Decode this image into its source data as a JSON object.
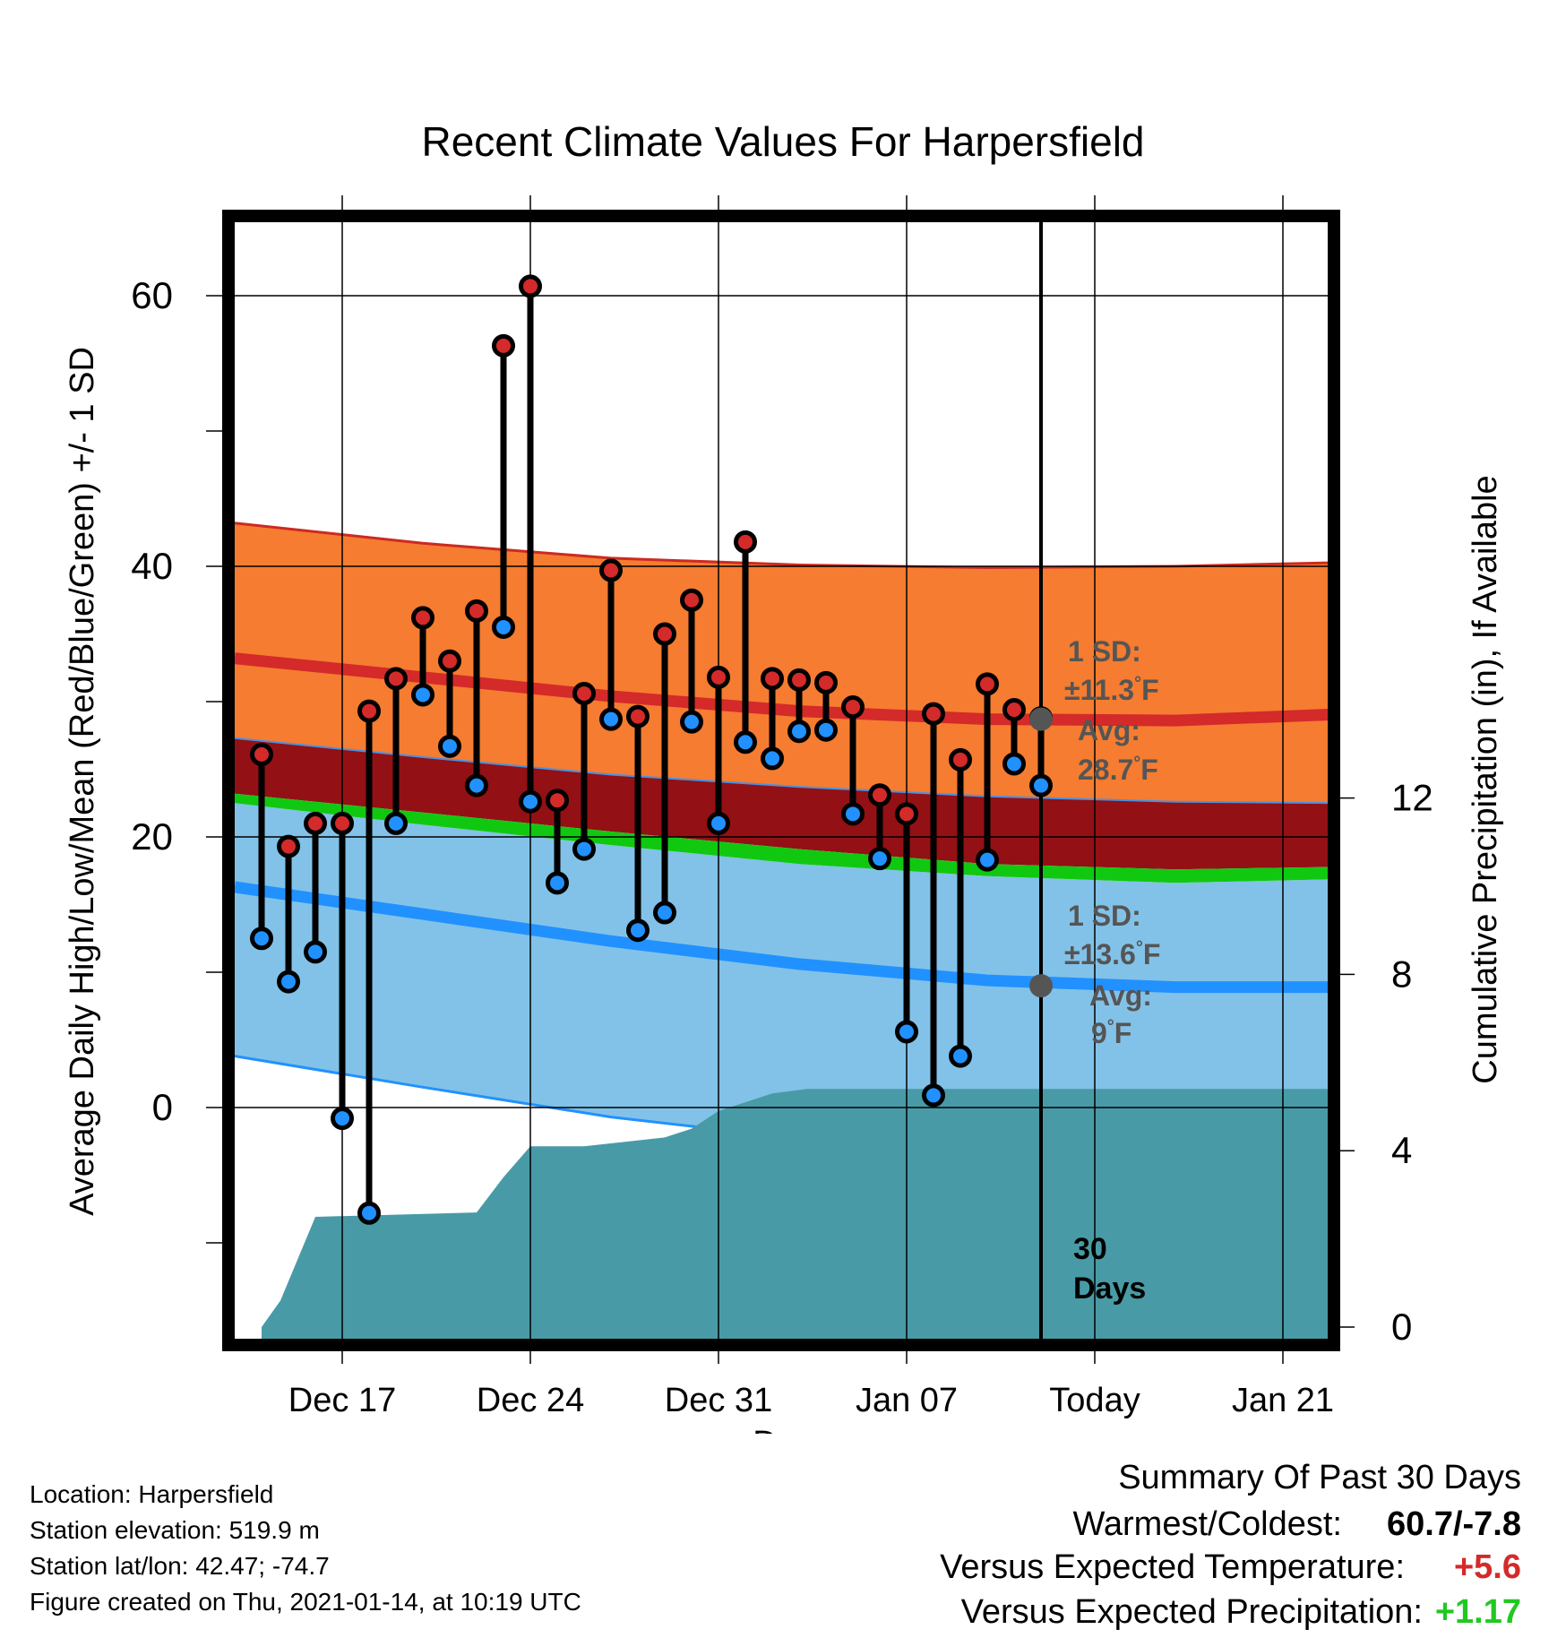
{
  "chart_data": {
    "type": "line",
    "title": "Recent Climate Values For Harpersfield",
    "xlabel": "Day",
    "ylabel": "Average Daily High/Low/Mean (Red/Blue/Green) +/- 1 SD",
    "y2label": "Cumulative Precipitation (in), If Available",
    "x_tick_labels": [
      "Dec 17",
      "Dec 24",
      "Dec 31",
      "Jan 07",
      "Today",
      "Jan 21"
    ],
    "y_ticks": [
      0,
      20,
      40,
      60
    ],
    "y2_ticks": [
      0,
      4,
      8,
      12
    ],
    "today_x": 30,
    "days_x": [
      1,
      2,
      3,
      4,
      5,
      6,
      7,
      8,
      9,
      10,
      11,
      12,
      13,
      14,
      15,
      16,
      17,
      18,
      19,
      20,
      21,
      22,
      23,
      24,
      25,
      26,
      27,
      28,
      29,
      30
    ],
    "daily_high": [
      26.1,
      19.3,
      21.0,
      21.0,
      29.3,
      31.7,
      36.2,
      33.0,
      36.7,
      56.3,
      60.7,
      22.7,
      30.6,
      39.7,
      28.9,
      35.0,
      37.5,
      31.8,
      41.8,
      31.7,
      31.6,
      31.4,
      29.6,
      23.1,
      21.7,
      29.1,
      25.7,
      31.3,
      29.4,
      28.8
    ],
    "daily_low": [
      12.5,
      9.3,
      11.5,
      -0.8,
      -7.8,
      21.0,
      30.5,
      26.7,
      23.8,
      35.5,
      22.6,
      16.6,
      19.1,
      28.7,
      13.1,
      14.4,
      28.5,
      21.0,
      27.0,
      25.8,
      27.8,
      27.9,
      21.7,
      18.4,
      5.6,
      0.9,
      3.8,
      18.3,
      25.4,
      23.8
    ],
    "normal_high_mean_upper_lower": {
      "x": [
        0,
        7,
        14,
        21,
        28,
        35,
        41.5
      ],
      "high_upper": [
        43.2,
        41.7,
        40.6,
        40.1,
        39.9,
        40.0,
        40.3
      ],
      "high_mean": [
        33.2,
        31.8,
        30.4,
        29.3,
        28.7,
        28.6,
        29.1
      ],
      "high_lower": [
        27.3,
        25.9,
        24.6,
        23.7,
        23.0,
        22.6,
        22.5
      ],
      "mean": [
        23.2,
        21.8,
        20.4,
        19.1,
        18.0,
        17.6,
        17.8
      ],
      "low_upper": [
        22.5,
        20.9,
        19.4,
        18.0,
        17.1,
        16.6,
        16.9
      ],
      "low_mean": [
        16.3,
        14.3,
        12.3,
        10.6,
        9.4,
        8.9,
        8.9
      ],
      "low_lower": [
        3.8,
        1.5,
        -0.7,
        -2.3,
        -3.1,
        -3.3,
        -3.3
      ]
    },
    "precip_cumulative": {
      "x": [
        1,
        1.7,
        3,
        9,
        10,
        11,
        13,
        16,
        17,
        18,
        19,
        20,
        21.3,
        41.5
      ],
      "y": [
        0,
        0.6,
        2.5,
        2.6,
        3.4,
        4.1,
        4.1,
        4.3,
        4.5,
        4.9,
        5.1,
        5.3,
        5.4,
        5.4
      ],
      "ylim": [
        0,
        12.5
      ]
    },
    "annotations": {
      "high_sd": "1 SD:",
      "high_sd_val": "±11.3",
      "high_avg": "Avg:",
      "high_avg_val": "28.7",
      "low_sd": "1 SD:",
      "low_sd_val": "±13.6",
      "low_avg": "Avg:",
      "low_avg_val": "9",
      "unit": "°F",
      "days_num": "30",
      "days_word": "Days"
    },
    "ylim": [
      -15,
      67
    ],
    "xlim": [
      0,
      41.5
    ],
    "grid": true,
    "colors": {
      "high_band": "#f57c30",
      "high_line": "#d42a2a",
      "overlap_band": "#931014",
      "mean_band": "#11c811",
      "low_band": "#82c2e8",
      "low_line": "#2191ff",
      "precip": "#489ba6",
      "high_dot": "#d42a2a",
      "low_dot": "#2191ff",
      "annotation": "#555555"
    }
  },
  "info": {
    "location": "Location: Harpersfield",
    "elevation": "Station elevation: 519.9 m",
    "latlon": "Station lat/lon: 42.47; -74.7",
    "created": "Figure created on Thu, 2021-01-14, at 10:19 UTC"
  },
  "summary": {
    "title": "Summary Of Past 30 Days",
    "warm_cold_label": "Warmest/Coldest:",
    "warm_cold_value": "60.7/-7.8",
    "temp_label": "Versus Expected Temperature:",
    "temp_value": "+5.6",
    "temp_color": "#d42a2a",
    "precip_label": "Versus Expected Precipitation:",
    "precip_value": "+1.17",
    "precip_color": "#21c821"
  }
}
